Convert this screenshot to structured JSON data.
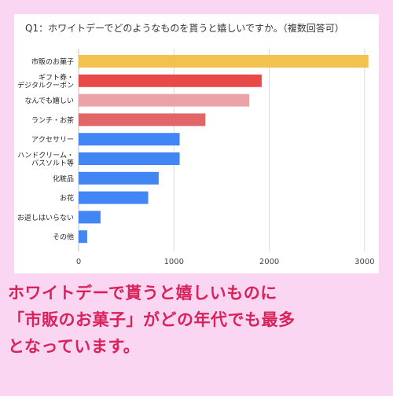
{
  "chart_data": {
    "type": "bar",
    "orientation": "horizontal",
    "title": "Q1：ホワイトデーでどのようなものを貰うと嬉しいですか。（複数回答可）",
    "categories": [
      "市販のお菓子",
      "ギフト券・\nデジタルクーポン",
      "なんでも嬉しい",
      "ランチ・お茶",
      "アクセサリー",
      "ハンドクリーム・\nバスソルト等",
      "化粧品",
      "お花",
      "お返しはいらない",
      "その他"
    ],
    "values": [
      3040,
      1920,
      1790,
      1330,
      1060,
      1060,
      840,
      730,
      230,
      90
    ],
    "colors": [
      "#f2c14e",
      "#e84a4a",
      "#eca3a7",
      "#e06667",
      "#4285f4",
      "#4285f4",
      "#4285f4",
      "#4285f4",
      "#4285f4",
      "#4285f4"
    ],
    "xticks": [
      0,
      1000,
      2000,
      3000
    ],
    "xlim": [
      0,
      3100
    ],
    "grid": true,
    "xlabel": "",
    "ylabel": ""
  },
  "caption": {
    "lines": [
      "ホワイトデーで貰うと嬉しいものに",
      "「市販のお菓子」がどの年代でも最多",
      "となっています。"
    ]
  },
  "colors": {
    "background": "#fbd6f3",
    "caption_text": "#d9225a",
    "gridline": "#d9d9d9"
  }
}
